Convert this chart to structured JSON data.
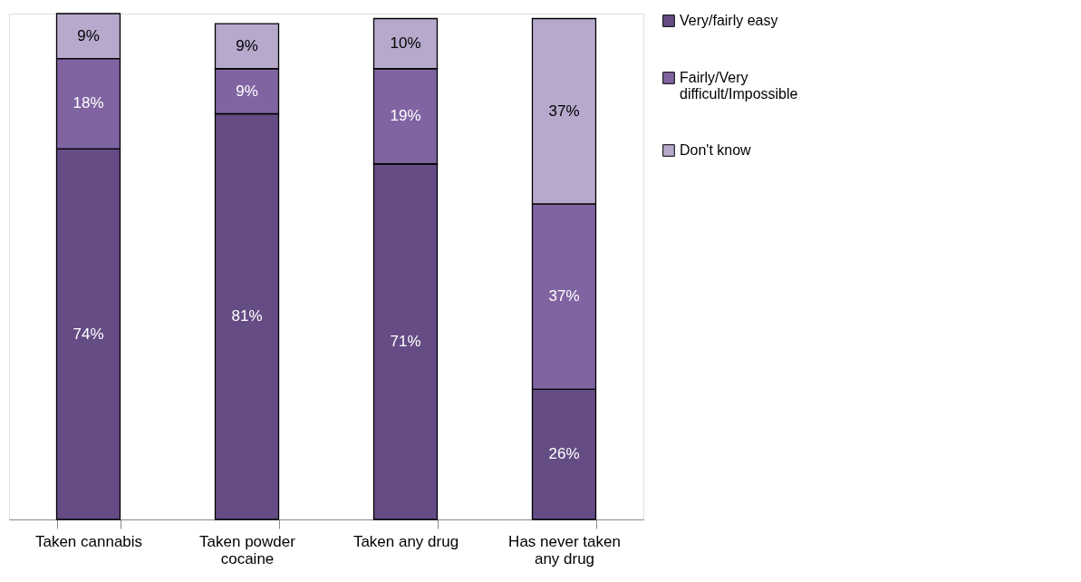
{
  "chart_data": {
    "type": "bar",
    "stacked": true,
    "legend": "right",
    "grid": false,
    "categories": [
      "Taken cannabis",
      "Taken powder cocaine",
      "Taken any drug",
      "Has never taken any drug"
    ],
    "series": [
      {
        "name": "Very/fairly easy",
        "color": "#654c85",
        "values": [
          74,
          81,
          71,
          26
        ],
        "value_labels": [
          "74%",
          "81%",
          "71%",
          "26%"
        ]
      },
      {
        "name": "Fairly/Very difficult/Impossible",
        "color": "#8064a2",
        "values": [
          18,
          9,
          19,
          37
        ],
        "value_labels": [
          "18%",
          "9%",
          "19%",
          "37%"
        ]
      },
      {
        "name": "Don't know",
        "color": "#b6a9cc",
        "values": [
          9,
          9,
          10,
          37
        ],
        "value_labels": [
          "9%",
          "9%",
          "10%",
          "37%"
        ]
      }
    ]
  }
}
